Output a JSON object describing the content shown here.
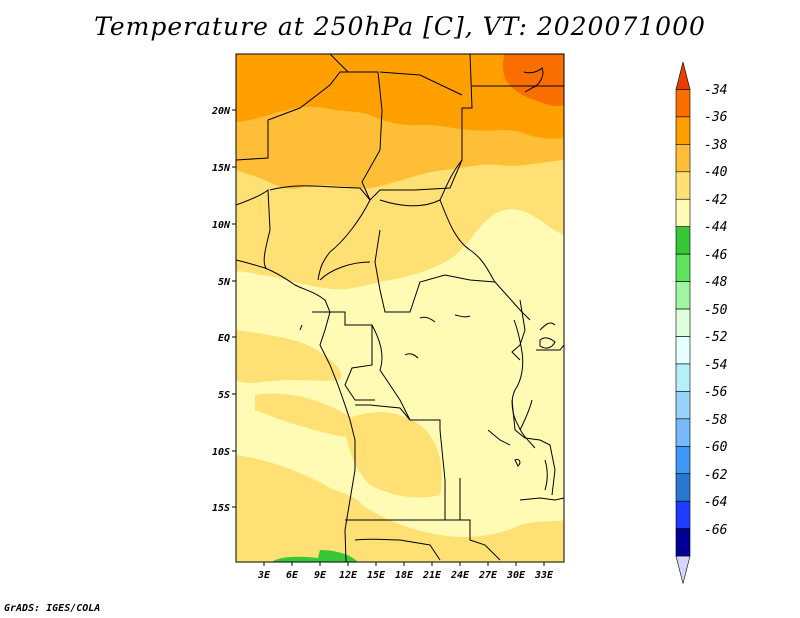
{
  "title": "Temperature at 250hPa [C], VT: 2020071000",
  "credit": "GrADS: IGES/COLA",
  "map": {
    "lon_labels": [
      "3E",
      "6E",
      "9E",
      "12E",
      "15E",
      "18E",
      "21E",
      "24E",
      "27E",
      "30E",
      "33E"
    ],
    "lat_labels": [
      "20N",
      "15N",
      "10N",
      "5N",
      "EQ",
      "5S",
      "10S",
      "15S"
    ],
    "lon_range": [
      0,
      35
    ],
    "lat_range": [
      -20,
      24.5
    ]
  },
  "colorbar": {
    "labels": [
      "-34",
      "-36",
      "-38",
      "-40",
      "-42",
      "-44",
      "-46",
      "-48",
      "-50",
      "-52",
      "-54",
      "-56",
      "-58",
      "-60",
      "-62",
      "-64",
      "-66"
    ],
    "colors": [
      "#e83c00",
      "#fa6e00",
      "#ffa000",
      "#ffbe37",
      "#ffe074",
      "#fffab4",
      "#37c837",
      "#5ee45e",
      "#a0f5a0",
      "#ddffdd",
      "#e6ffff",
      "#b4f0fa",
      "#96d2fa",
      "#78b9fa",
      "#3c97f5",
      "#2878d2",
      "#1e3cff",
      "#000096",
      "#d5d5ff"
    ]
  },
  "colors": {
    "zone_m42": "#fffab4",
    "zone_m40": "#ffe074",
    "zone_m38": "#ffbe37",
    "zone_m36": "#ffa000",
    "zone_m34": "#fa6e00",
    "zone_m44": "#37c837"
  }
}
